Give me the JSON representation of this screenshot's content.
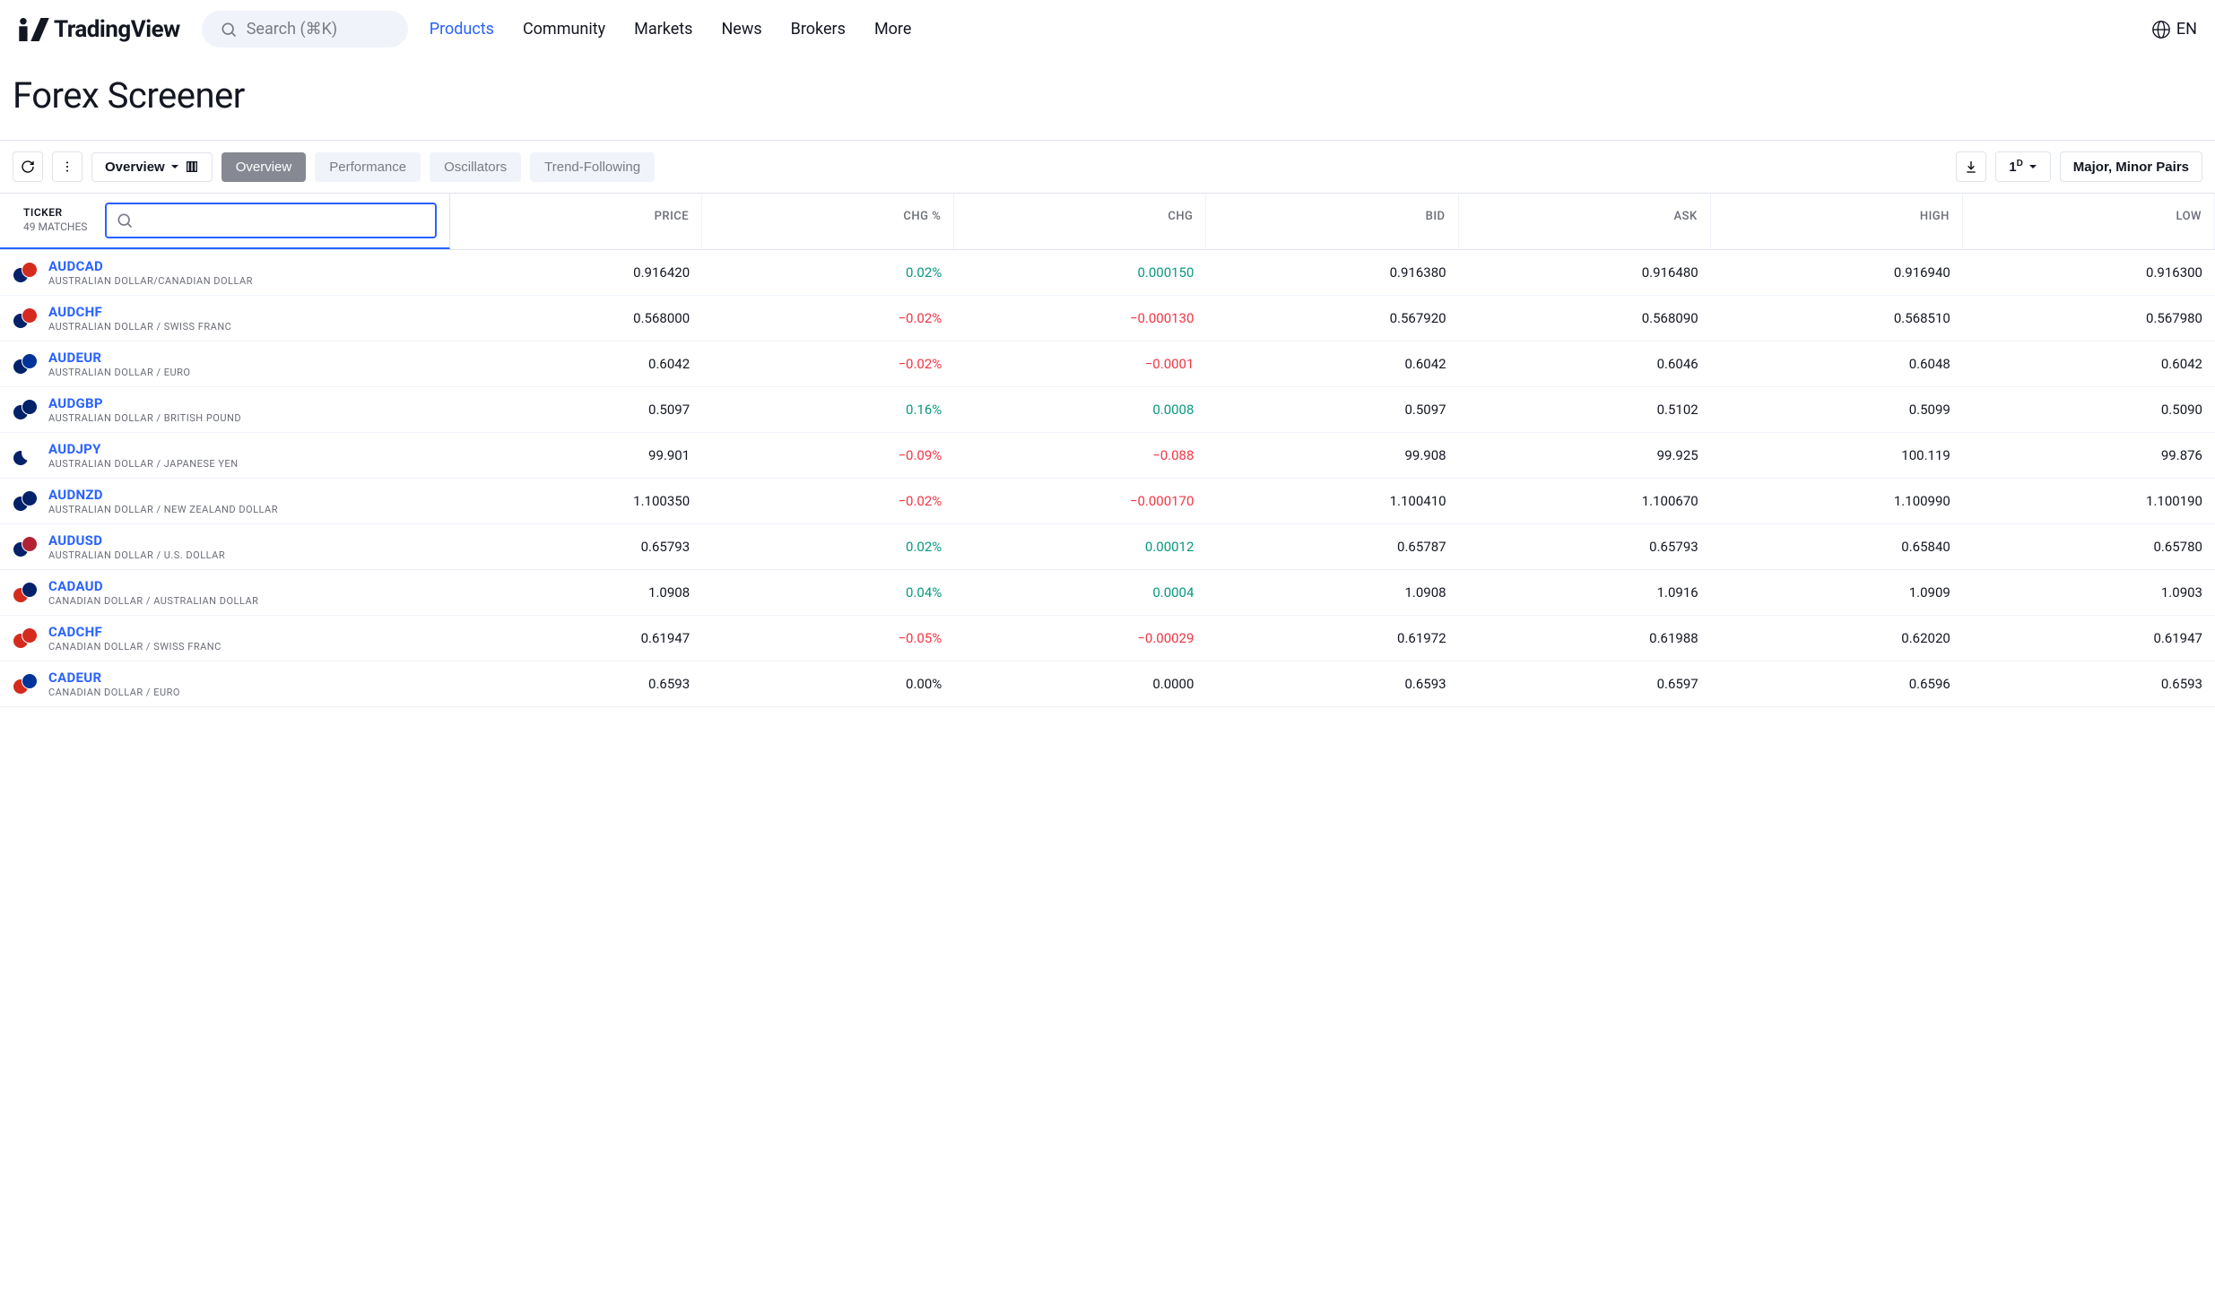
{
  "header": {
    "logo_text": "TradingView",
    "search_placeholder": "Search (⌘K)",
    "nav": [
      {
        "label": "Products",
        "active": true
      },
      {
        "label": "Community",
        "active": false
      },
      {
        "label": "Markets",
        "active": false
      },
      {
        "label": "News",
        "active": false
      },
      {
        "label": "Brokers",
        "active": false
      },
      {
        "label": "More",
        "active": false
      }
    ],
    "lang": "EN"
  },
  "page_title": "Forex Screener",
  "toolbar": {
    "overview_dropdown": "Overview",
    "tabs": [
      {
        "label": "Overview",
        "active": true
      },
      {
        "label": "Performance",
        "active": false
      },
      {
        "label": "Oscillators",
        "active": false
      },
      {
        "label": "Trend-Following",
        "active": false
      }
    ],
    "timeframe": "1",
    "timeframe_sup": "D",
    "filter_label": "Major, Minor Pairs"
  },
  "table": {
    "ticker_label": "TICKER",
    "matches_label": "49 MATCHES",
    "columns": [
      "PRICE",
      "CHG %",
      "CHG",
      "BID",
      "ASK",
      "HIGH",
      "LOW"
    ],
    "flag_colors": {
      "AUD": "#012169",
      "CAD": "#d52b1e",
      "CHF": "#d52b1e",
      "EUR": "#003399",
      "GBP": "#012169",
      "JPY": "#ffffff",
      "NZD": "#012169",
      "USD": "#b22234"
    },
    "rows": [
      {
        "symbol": "AUDCAD",
        "desc": "AUSTRALIAN DOLLAR/CANADIAN DOLLAR",
        "base": "AUD",
        "quote": "CAD",
        "price": "0.916420",
        "chg_pct": "0.02%",
        "chg": "0.000150",
        "dir": "pos",
        "bid": "0.916380",
        "ask": "0.916480",
        "high": "0.916940",
        "low": "0.916300"
      },
      {
        "symbol": "AUDCHF",
        "desc": "AUSTRALIAN DOLLAR / SWISS FRANC",
        "base": "AUD",
        "quote": "CHF",
        "price": "0.568000",
        "chg_pct": "−0.02%",
        "chg": "−0.000130",
        "dir": "neg",
        "bid": "0.567920",
        "ask": "0.568090",
        "high": "0.568510",
        "low": "0.567980"
      },
      {
        "symbol": "AUDEUR",
        "desc": "AUSTRALIAN DOLLAR / EURO",
        "base": "AUD",
        "quote": "EUR",
        "price": "0.6042",
        "chg_pct": "−0.02%",
        "chg": "−0.0001",
        "dir": "neg",
        "bid": "0.6042",
        "ask": "0.6046",
        "high": "0.6048",
        "low": "0.6042"
      },
      {
        "symbol": "AUDGBP",
        "desc": "AUSTRALIAN DOLLAR / BRITISH POUND",
        "base": "AUD",
        "quote": "GBP",
        "price": "0.5097",
        "chg_pct": "0.16%",
        "chg": "0.0008",
        "dir": "pos",
        "bid": "0.5097",
        "ask": "0.5102",
        "high": "0.5099",
        "low": "0.5090"
      },
      {
        "symbol": "AUDJPY",
        "desc": "AUSTRALIAN DOLLAR / JAPANESE YEN",
        "base": "AUD",
        "quote": "JPY",
        "price": "99.901",
        "chg_pct": "−0.09%",
        "chg": "−0.088",
        "dir": "neg",
        "bid": "99.908",
        "ask": "99.925",
        "high": "100.119",
        "low": "99.876"
      },
      {
        "symbol": "AUDNZD",
        "desc": "AUSTRALIAN DOLLAR / NEW ZEALAND DOLLAR",
        "base": "AUD",
        "quote": "NZD",
        "price": "1.100350",
        "chg_pct": "−0.02%",
        "chg": "−0.000170",
        "dir": "neg",
        "bid": "1.100410",
        "ask": "1.100670",
        "high": "1.100990",
        "low": "1.100190"
      },
      {
        "symbol": "AUDUSD",
        "desc": "AUSTRALIAN DOLLAR / U.S. DOLLAR",
        "base": "AUD",
        "quote": "USD",
        "price": "0.65793",
        "chg_pct": "0.02%",
        "chg": "0.00012",
        "dir": "pos",
        "bid": "0.65787",
        "ask": "0.65793",
        "high": "0.65840",
        "low": "0.65780"
      },
      {
        "symbol": "CADAUD",
        "desc": "CANADIAN DOLLAR / AUSTRALIAN DOLLAR",
        "base": "CAD",
        "quote": "AUD",
        "price": "1.0908",
        "chg_pct": "0.04%",
        "chg": "0.0004",
        "dir": "pos",
        "bid": "1.0908",
        "ask": "1.0916",
        "high": "1.0909",
        "low": "1.0903"
      },
      {
        "symbol": "CADCHF",
        "desc": "CANADIAN DOLLAR / SWISS FRANC",
        "base": "CAD",
        "quote": "CHF",
        "price": "0.61947",
        "chg_pct": "−0.05%",
        "chg": "−0.00029",
        "dir": "neg",
        "bid": "0.61972",
        "ask": "0.61988",
        "high": "0.62020",
        "low": "0.61947"
      },
      {
        "symbol": "CADEUR",
        "desc": "CANADIAN DOLLAR / EURO",
        "base": "CAD",
        "quote": "EUR",
        "price": "0.6593",
        "chg_pct": "0.00%",
        "chg": "0.0000",
        "dir": "zero",
        "bid": "0.6593",
        "ask": "0.6597",
        "high": "0.6596",
        "low": "0.6593"
      }
    ]
  }
}
